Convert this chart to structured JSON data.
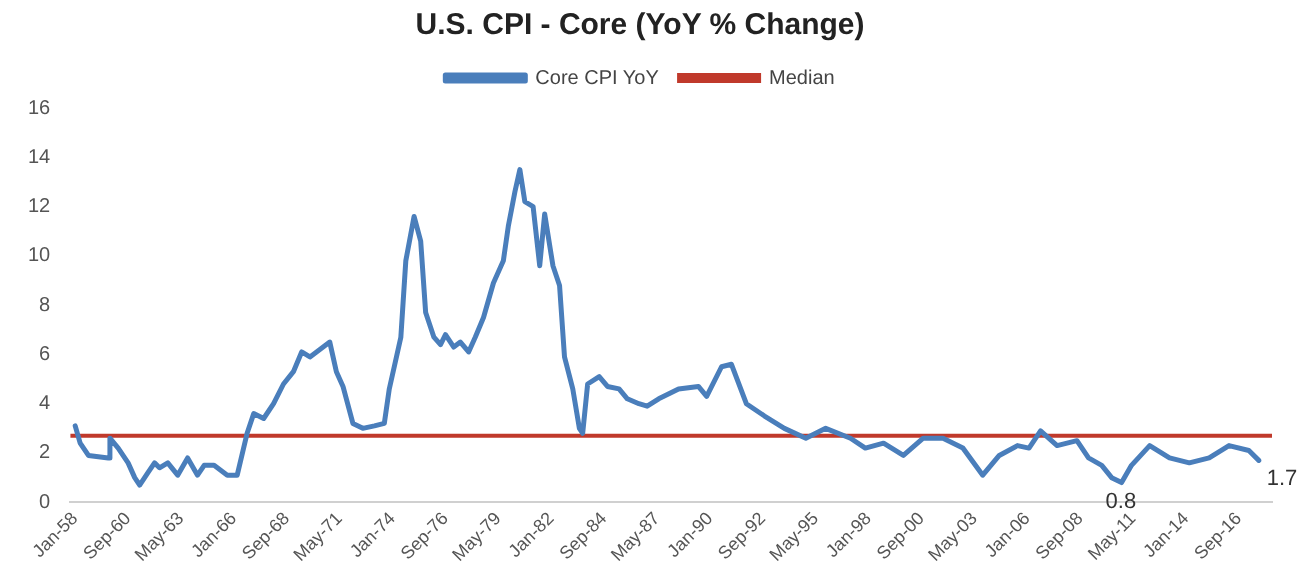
{
  "chart_data": {
    "type": "line",
    "title": "U.S. CPI - Core (YoY % Change)",
    "legend": "top",
    "grid": false,
    "marker": "none",
    "x": [
      "1958-01",
      "1958-04",
      "1958-09",
      "1959-09",
      "1959-10",
      "1960-03",
      "1960-09",
      "1961-01",
      "1961-04",
      "1961-09",
      "1962-01",
      "1962-04",
      "1962-09",
      "1963-03",
      "1963-09",
      "1964-03",
      "1964-07",
      "1965-01",
      "1965-09",
      "1966-03",
      "1966-09",
      "1967-01",
      "1967-07",
      "1968-01",
      "1968-07",
      "1969-01",
      "1969-06",
      "1969-11",
      "1970-03",
      "1970-07",
      "1970-11",
      "1971-03",
      "1971-07",
      "1972-01",
      "1972-07",
      "1973-02",
      "1973-08",
      "1973-11",
      "1974-06",
      "1974-09",
      "1975-02",
      "1975-06",
      "1975-09",
      "1976-02",
      "1976-06",
      "1976-09",
      "1977-02",
      "1977-06",
      "1977-11",
      "1978-03",
      "1978-08",
      "1979-02",
      "1979-08",
      "1979-11",
      "1980-03",
      "1980-06",
      "1980-09",
      "1981-02",
      "1981-06",
      "1981-09",
      "1982-02",
      "1982-06",
      "1982-09",
      "1983-02",
      "1983-06",
      "1983-08",
      "1983-11",
      "1984-06",
      "1984-11",
      "1985-06",
      "1985-11",
      "1986-06",
      "1986-11",
      "1987-06",
      "1988-06",
      "1989-06",
      "1989-11",
      "1990-08",
      "1991-02",
      "1991-11",
      "1992-10",
      "1993-10",
      "1994-11",
      "1995-11",
      "1997-02",
      "1997-11",
      "1998-10",
      "1999-10",
      "2000-10",
      "2001-10",
      "2002-10",
      "2003-10",
      "2004-08",
      "2005-07",
      "2006-02",
      "2006-09",
      "2007-07",
      "2008-07",
      "2009-02",
      "2009-10",
      "2010-04",
      "2010-10",
      "2011-04",
      "2012-03",
      "2013-03",
      "2014-03",
      "2015-03",
      "2016-03",
      "2017-03",
      "2017-09"
    ],
    "series": [
      {
        "name": "Core CPI YoY",
        "color": "#4a7ebb",
        "values": [
          3.1,
          2.4,
          1.9,
          1.8,
          2.6,
          2.2,
          1.6,
          1.0,
          0.7,
          1.2,
          1.6,
          1.4,
          1.6,
          1.1,
          1.8,
          1.1,
          1.5,
          1.5,
          1.1,
          1.1,
          2.8,
          3.6,
          3.4,
          4.0,
          4.8,
          5.3,
          6.1,
          5.9,
          6.1,
          6.3,
          6.5,
          5.3,
          4.7,
          3.2,
          3.0,
          3.1,
          3.2,
          4.6,
          6.7,
          9.8,
          11.6,
          10.6,
          7.7,
          6.7,
          6.4,
          6.8,
          6.3,
          6.5,
          6.1,
          6.7,
          7.5,
          8.9,
          9.8,
          11.2,
          12.6,
          13.5,
          12.2,
          12.0,
          9.6,
          11.7,
          9.6,
          8.8,
          5.9,
          4.6,
          3.0,
          2.8,
          4.8,
          5.1,
          4.7,
          4.6,
          4.2,
          4.0,
          3.9,
          4.2,
          4.6,
          4.7,
          4.3,
          5.5,
          5.6,
          4.0,
          3.5,
          3.0,
          2.6,
          3.0,
          2.6,
          2.2,
          2.4,
          1.9,
          2.6,
          2.6,
          2.2,
          1.1,
          1.9,
          2.3,
          2.2,
          2.9,
          2.3,
          2.5,
          1.8,
          1.5,
          1.0,
          0.8,
          1.5,
          2.3,
          1.8,
          1.6,
          1.8,
          2.3,
          2.1,
          1.7
        ]
      }
    ],
    "ref_lines": [
      {
        "axis": "y",
        "value": 2.7,
        "label": "Median",
        "color": "#c0392b"
      }
    ],
    "xlim": [
      "1957-10",
      "2018-05"
    ],
    "xticks": [
      {
        "value": "1958-01",
        "label": "Jan-58"
      },
      {
        "value": "1960-09",
        "label": "Sep-60"
      },
      {
        "value": "1963-05",
        "label": "May-63"
      },
      {
        "value": "1966-01",
        "label": "Jan-66"
      },
      {
        "value": "1968-09",
        "label": "Sep-68"
      },
      {
        "value": "1971-05",
        "label": "May-71"
      },
      {
        "value": "1974-01",
        "label": "Jan-74"
      },
      {
        "value": "1976-09",
        "label": "Sep-76"
      },
      {
        "value": "1979-05",
        "label": "May-79"
      },
      {
        "value": "1982-01",
        "label": "Jan-82"
      },
      {
        "value": "1984-09",
        "label": "Sep-84"
      },
      {
        "value": "1987-05",
        "label": "May-87"
      },
      {
        "value": "1990-01",
        "label": "Jan-90"
      },
      {
        "value": "1992-09",
        "label": "Sep-92"
      },
      {
        "value": "1995-05",
        "label": "May-95"
      },
      {
        "value": "1998-01",
        "label": "Jan-98"
      },
      {
        "value": "2000-09",
        "label": "Sep-00"
      },
      {
        "value": "2003-05",
        "label": "May-03"
      },
      {
        "value": "2006-01",
        "label": "Jan-06"
      },
      {
        "value": "2008-09",
        "label": "Sep-08"
      },
      {
        "value": "2011-05",
        "label": "May-11"
      },
      {
        "value": "2014-01",
        "label": "Jan-14"
      },
      {
        "value": "2016-09",
        "label": "Sep-16"
      }
    ],
    "ylim": [
      0,
      16
    ],
    "yticks": [
      0,
      2,
      4,
      6,
      8,
      10,
      12,
      14,
      16
    ],
    "annotations": [
      {
        "text": "0.8",
        "x": "2010-10",
        "y": 0.8
      },
      {
        "text": "1.7",
        "x": "2017-09",
        "y": 1.7
      }
    ]
  }
}
